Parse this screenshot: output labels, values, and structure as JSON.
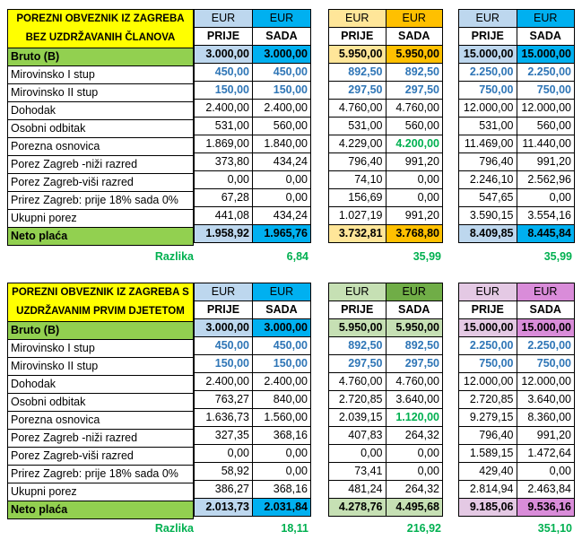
{
  "colors": {
    "yellow_title": "#ffff00",
    "green_row": "#92d050",
    "blue_value": "#2e75b6",
    "green_value": "#00b050",
    "light_blue": "#bdd7ee",
    "sky_blue": "#00b0f0",
    "light_orange": "#ffe699",
    "orange": "#ffc000",
    "light_green": "#c6e0b4",
    "green": "#70ad47",
    "light_purple": "#e4c9e4",
    "purple": "#d98cd9"
  },
  "section1": {
    "title_line1": "POREZNI OBVEZNIK IZ ZAGREBA",
    "title_line2": "BEZ UZDRŽAVANIH ČLANOVA",
    "currency": "EUR",
    "col_prije": "PRIJE",
    "col_sada": "SADA",
    "diff_label": "Razlika",
    "rows": [
      {
        "label": "Bruto (B)",
        "v": [
          "3.000,00",
          "3.000,00",
          "5.950,00",
          "5.950,00",
          "15.000,00",
          "15.000,00"
        ]
      },
      {
        "label": "Mirovinsko I stup",
        "v": [
          "450,00",
          "450,00",
          "892,50",
          "892,50",
          "2.250,00",
          "2.250,00"
        ]
      },
      {
        "label": "Mirovinsko II stup",
        "v": [
          "150,00",
          "150,00",
          "297,50",
          "297,50",
          "750,00",
          "750,00"
        ]
      },
      {
        "label": "Dohodak",
        "v": [
          "2.400,00",
          "2.400,00",
          "4.760,00",
          "4.760,00",
          "12.000,00",
          "12.000,00"
        ]
      },
      {
        "label": "Osobni odbitak",
        "v": [
          "531,00",
          "560,00",
          "531,00",
          "560,00",
          "531,00",
          "560,00"
        ]
      },
      {
        "label": "Porezna osnovica",
        "v": [
          "1.869,00",
          "1.840,00",
          "4.229,00",
          "4.200,00",
          "11.469,00",
          "11.440,00"
        ]
      },
      {
        "label": "Porez Zagreb -niži razred",
        "v": [
          "373,80",
          "434,24",
          "796,40",
          "991,20",
          "796,40",
          "991,20"
        ]
      },
      {
        "label": "Porez Zagreb-viši razred",
        "v": [
          "0,00",
          "0,00",
          "74,10",
          "0,00",
          "2.246,10",
          "2.562,96"
        ]
      },
      {
        "label": "Prirez Zagreb: prije 18% sada 0%",
        "v": [
          "67,28",
          "0,00",
          "156,69",
          "0,00",
          "547,65",
          "0,00"
        ]
      },
      {
        "label": "Ukupni porez",
        "v": [
          "441,08",
          "434,24",
          "1.027,19",
          "991,20",
          "3.590,15",
          "3.554,16"
        ]
      },
      {
        "label": "Neto plaća",
        "v": [
          "1.958,92",
          "1.965,76",
          "3.732,81",
          "3.768,80",
          "8.409,85",
          "8.445,84"
        ]
      }
    ],
    "diffs": [
      "6,84",
      "35,99",
      "35,99"
    ]
  },
  "section2": {
    "title_line1": "POREZNI OBVEZNIK IZ ZAGREBA S",
    "title_line2": "UZDRŽAVANIM PRVIM DJETETOM",
    "currency": "EUR",
    "col_prije": "PRIJE",
    "col_sada": "SADA",
    "diff_label": "Razlika",
    "rows": [
      {
        "label": "Bruto (B)",
        "v": [
          "3.000,00",
          "3.000,00",
          "5.950,00",
          "5.950,00",
          "15.000,00",
          "15.000,00"
        ]
      },
      {
        "label": "Mirovinsko I stup",
        "v": [
          "450,00",
          "450,00",
          "892,50",
          "892,50",
          "2.250,00",
          "2.250,00"
        ]
      },
      {
        "label": "Mirovinsko II stup",
        "v": [
          "150,00",
          "150,00",
          "297,50",
          "297,50",
          "750,00",
          "750,00"
        ]
      },
      {
        "label": "Dohodak",
        "v": [
          "2.400,00",
          "2.400,00",
          "4.760,00",
          "4.760,00",
          "12.000,00",
          "12.000,00"
        ]
      },
      {
        "label": "Osobni odbitak",
        "v": [
          "763,27",
          "840,00",
          "2.720,85",
          "3.640,00",
          "2.720,85",
          "3.640,00"
        ]
      },
      {
        "label": "Porezna osnovica",
        "v": [
          "1.636,73",
          "1.560,00",
          "2.039,15",
          "1.120,00",
          "9.279,15",
          "8.360,00"
        ]
      },
      {
        "label": "Porez Zagreb -niži razred",
        "v": [
          "327,35",
          "368,16",
          "407,83",
          "264,32",
          "796,40",
          "991,20"
        ]
      },
      {
        "label": "Porez Zagreb-viši razred",
        "v": [
          "0,00",
          "0,00",
          "0,00",
          "0,00",
          "1.589,15",
          "1.472,64"
        ]
      },
      {
        "label": "Prirez Zagreb: prije 18% sada 0%",
        "v": [
          "58,92",
          "0,00",
          "73,41",
          "0,00",
          "429,40",
          "0,00"
        ]
      },
      {
        "label": "Ukupni porez",
        "v": [
          "386,27",
          "368,16",
          "481,24",
          "264,32",
          "2.814,94",
          "2.463,84"
        ]
      },
      {
        "label": "Neto plaća",
        "v": [
          "2.013,73",
          "2.031,84",
          "4.278,76",
          "4.495,68",
          "9.185,06",
          "9.536,16"
        ]
      }
    ],
    "diffs": [
      "18,11",
      "216,92",
      "351,10"
    ]
  }
}
